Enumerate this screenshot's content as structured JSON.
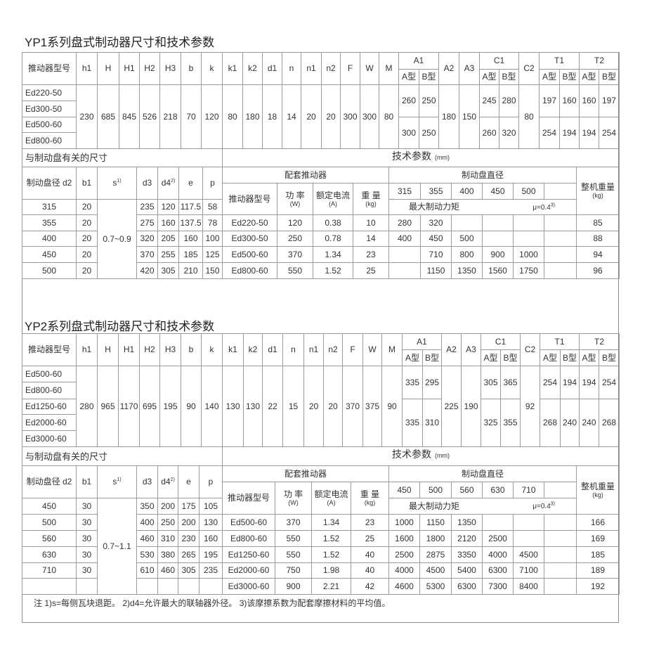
{
  "yp1": {
    "title": "YP1系列盘式制动器尺寸和技术参数",
    "header": {
      "model_label": "推动器型号",
      "cols": [
        "h1",
        "H",
        "H1",
        "H2",
        "H3",
        "b",
        "k",
        "k1",
        "k2",
        "d1",
        "n",
        "n1",
        "n2",
        "F",
        "W",
        "M"
      ],
      "A1": "A1",
      "A2": "A2",
      "A3": "A3",
      "C1": "C1",
      "C2": "C2",
      "T1": "T1",
      "T2": "T2",
      "type_a": "A型",
      "type_b": "B型"
    },
    "models": [
      "Ed220-50",
      "Ed300-50",
      "Ed500-60",
      "Ed800-60"
    ],
    "common": [
      "230",
      "685",
      "845",
      "526",
      "218",
      "70",
      "120",
      "80",
      "180",
      "18",
      "14",
      "20",
      "20",
      "300",
      "300",
      "80"
    ],
    "A1": [
      [
        "260",
        "250"
      ],
      [
        "300",
        "250"
      ]
    ],
    "A2": "180",
    "A3": "150",
    "C1": [
      [
        "245",
        "280"
      ],
      [
        "260",
        "320"
      ]
    ],
    "C2": "80",
    "T1": [
      [
        "197",
        "160"
      ],
      [
        "254",
        "194"
      ]
    ],
    "T2": [
      [
        "160",
        "197"
      ],
      [
        "194",
        "254"
      ]
    ],
    "disc_section_label": "与制动盘有关的尺寸",
    "tech_label": "技术参数",
    "tech_unit": "(mm)",
    "disc_header": {
      "d2": "制动盘径  d2",
      "b1": "b1",
      "s": "s",
      "s_sup": "1)",
      "d3": "d3",
      "d4": "d4",
      "d4_sup": "2)",
      "e": "e",
      "p": "p"
    },
    "s_value": "0.7~0.9",
    "disc_rows": [
      [
        "315",
        "20",
        "235",
        "120",
        "117.5",
        "58"
      ],
      [
        "355",
        "20",
        "275",
        "160",
        "137.5",
        "78"
      ],
      [
        "400",
        "20",
        "320",
        "205",
        "160",
        "100"
      ],
      [
        "450",
        "20",
        "370",
        "255",
        "185",
        "125"
      ],
      [
        "500",
        "20",
        "420",
        "305",
        "210",
        "150"
      ]
    ],
    "actuator_label": "配套推动器",
    "actuator_header": {
      "model": "推动器型号",
      "power": "功 率",
      "power_unit": "(W)",
      "current": "额定电流",
      "current_unit": "(A)",
      "weight": "重 量",
      "weight_unit": "(kg)"
    },
    "disc_diameter_label": "制动盘直径",
    "diameters": [
      "315",
      "355",
      "400",
      "450",
      "500",
      ""
    ],
    "max_torque_label": "最大制动力矩",
    "mu": "μ=0.4",
    "mu_sup": "3)",
    "total_weight_label": "整机重量",
    "total_weight_unit": "(kg)",
    "actuator_rows": [
      {
        "model": "Ed220-50",
        "power": "120",
        "current": "0.38",
        "weight": "10",
        "torques": [
          "280",
          "320",
          "",
          "",
          "",
          ""
        ],
        "total": "85"
      },
      {
        "model": "Ed300-50",
        "power": "250",
        "current": "0.78",
        "weight": "14",
        "torques": [
          "400",
          "450",
          "500",
          "",
          "",
          ""
        ],
        "total": "88"
      },
      {
        "model": "Ed500-60",
        "power": "370",
        "current": "1.34",
        "weight": "23",
        "torques": [
          "",
          "710",
          "800",
          "900",
          "1000",
          ""
        ],
        "total": "94"
      },
      {
        "model": "Ed800-60",
        "power": "550",
        "current": "1.52",
        "weight": "25",
        "torques": [
          "",
          "1150",
          "1350",
          "1560",
          "1750",
          ""
        ],
        "total": "96"
      }
    ]
  },
  "yp2": {
    "title": "YP2系列盘式制动器尺寸和技术参数",
    "header": {
      "model_label": "推动器型号",
      "cols": [
        "h1",
        "H",
        "H1",
        "H2",
        "H3",
        "b",
        "k",
        "k1",
        "k2",
        "d1",
        "n",
        "n1",
        "n2",
        "F",
        "W",
        "M"
      ],
      "A1": "A1",
      "A2": "A2",
      "A3": "A3",
      "C1": "C1",
      "C2": "C2",
      "T1": "T1",
      "T2": "T2",
      "type_a": "A型",
      "type_b": "B型"
    },
    "models": [
      "Ed500-60",
      "Ed800-60",
      "Ed1250-60",
      "Ed2000-60",
      "Ed3000-60"
    ],
    "common": [
      "280",
      "965",
      "1170",
      "695",
      "195",
      "90",
      "140",
      "130",
      "130",
      "22",
      "15",
      "20",
      "20",
      "370",
      "375",
      "90"
    ],
    "A1": [
      [
        "335",
        "295"
      ],
      [
        "335",
        "310"
      ]
    ],
    "A2": "225",
    "A3": "190",
    "C1": [
      [
        "305",
        "365"
      ],
      [
        "325",
        "355"
      ]
    ],
    "C2": "92",
    "T1": [
      [
        "254",
        "194"
      ],
      [
        "268",
        "240"
      ]
    ],
    "T2": [
      [
        "194",
        "254"
      ],
      [
        "240",
        "268"
      ]
    ],
    "disc_section_label": "与制动盘有关的尺寸",
    "tech_label": "技术参数",
    "tech_unit": "(mm)",
    "disc_header": {
      "d2": "制动盘径  d2",
      "b1": "b1",
      "s": "s",
      "s_sup": "1)",
      "d3": "d3",
      "d4": "d4",
      "d4_sup": "2)",
      "e": "e",
      "p": "p"
    },
    "s_value": "0.7~1.1",
    "disc_rows": [
      [
        "450",
        "30",
        "350",
        "200",
        "175",
        "105"
      ],
      [
        "500",
        "30",
        "400",
        "250",
        "200",
        "130"
      ],
      [
        "560",
        "30",
        "460",
        "310",
        "230",
        "160"
      ],
      [
        "630",
        "30",
        "530",
        "380",
        "265",
        "195"
      ],
      [
        "710",
        "30",
        "610",
        "460",
        "305",
        "235"
      ],
      [
        "",
        "",
        "",
        "",
        "",
        ""
      ]
    ],
    "actuator_label": "配套推动器",
    "actuator_header": {
      "model": "推动器型号",
      "power": "功 率",
      "power_unit": "(W)",
      "current": "额定电流",
      "current_unit": "(A)",
      "weight": "重 量",
      "weight_unit": "(kg)"
    },
    "disc_diameter_label": "制动盘直径",
    "diameters": [
      "450",
      "500",
      "560",
      "630",
      "710",
      ""
    ],
    "max_torque_label": "最大制动力矩",
    "mu": "μ=0.4",
    "mu_sup": "3)",
    "total_weight_label": "整机重量",
    "total_weight_unit": "(kg)",
    "actuator_rows": [
      {
        "model": "Ed500-60",
        "power": "370",
        "current": "1.34",
        "weight": "23",
        "torques": [
          "1000",
          "1150",
          "1350",
          "",
          "",
          ""
        ],
        "total": "166"
      },
      {
        "model": "Ed800-60",
        "power": "550",
        "current": "1.52",
        "weight": "25",
        "torques": [
          "1600",
          "1800",
          "2120",
          "2500",
          "",
          ""
        ],
        "total": "169"
      },
      {
        "model": "Ed1250-60",
        "power": "550",
        "current": "1.52",
        "weight": "40",
        "torques": [
          "2500",
          "2875",
          "3350",
          "4000",
          "4500",
          ""
        ],
        "total": "185"
      },
      {
        "model": "Ed2000-60",
        "power": "750",
        "current": "1.98",
        "weight": "40",
        "torques": [
          "4000",
          "4500",
          "5400",
          "6300",
          "7100",
          ""
        ],
        "total": "189"
      },
      {
        "model": "Ed3000-60",
        "power": "900",
        "current": "2.21",
        "weight": "42",
        "torques": [
          "4600",
          "5300",
          "6300",
          "7300",
          "8400",
          ""
        ],
        "total": "192"
      }
    ]
  },
  "footnote": "注  1)s=每侧瓦块退距。 2)d4=允许最大的联轴器外径。 3)该摩擦系数为配套摩擦材料的平均值。"
}
